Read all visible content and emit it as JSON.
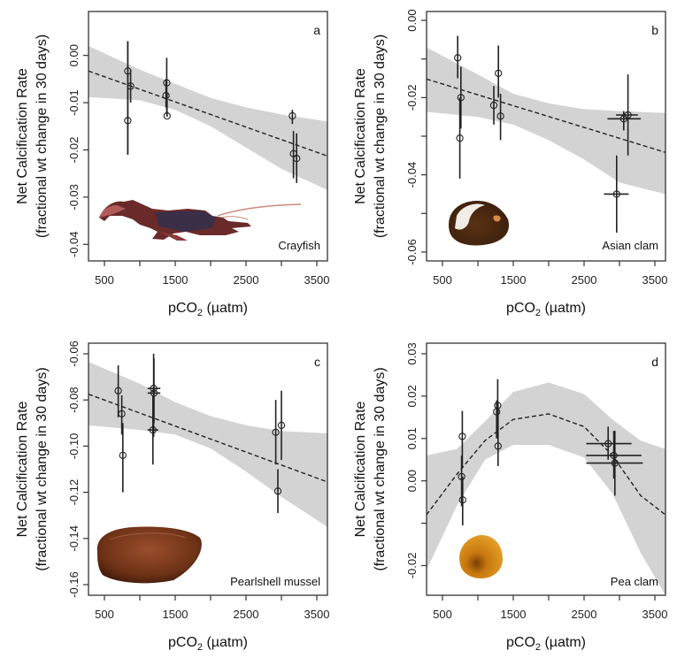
{
  "figure": {
    "x_axis_title": "pCO",
    "x_axis_sub": "2",
    "x_axis_unit": " (µatm)",
    "y_axis_title_line1": "Net Calcification Rate",
    "y_axis_title_line2": "(fractional wt change in 30 days)"
  },
  "colors": {
    "ci_band": "#d3d3d3",
    "line": "#222222",
    "points": "#222222",
    "frame": "#333333"
  },
  "chart_data": [
    {
      "type": "scatter",
      "panel": "a",
      "species": "Crayfish",
      "species_icon": "crayfish-photo",
      "xlabel": "pCO2 (µatm)",
      "ylabel": "Net Calcification Rate (fractional wt change in 30 days)",
      "xlim": [
        275,
        3650
      ],
      "ylim": [
        -0.0435,
        0.0093
      ],
      "x_ticks": [
        500,
        1000,
        1500,
        2000,
        2500,
        3000,
        3500
      ],
      "x_tick_labels": [
        "500",
        "",
        "1500",
        "",
        "2500",
        "",
        "3500"
      ],
      "y_ticks": [
        0.0,
        -0.01,
        -0.02,
        -0.03,
        -0.04
      ],
      "y_tick_labels": [
        "0.00",
        "-0.01",
        "-0.02",
        "-0.03",
        "-0.04"
      ],
      "fit": {
        "kind": "linear",
        "x": [
          275,
          3650
        ],
        "y": [
          -0.0033,
          -0.0213
        ]
      },
      "ci_band": {
        "x": [
          275,
          1000,
          1500,
          2000,
          2500,
          3000,
          3650
        ],
        "upper": [
          0.002,
          -0.003,
          -0.006,
          -0.009,
          -0.011,
          -0.0125,
          -0.014
        ],
        "lower": [
          -0.0088,
          -0.0095,
          -0.0115,
          -0.015,
          -0.0195,
          -0.024,
          -0.0285
        ]
      },
      "points": [
        {
          "x": 830,
          "y": -0.0033,
          "ylo": -0.021,
          "yhi": 0.003
        },
        {
          "x": 870,
          "y": -0.0065,
          "ylo": -0.01,
          "yhi": -0.003
        },
        {
          "x": 830,
          "y": -0.0138,
          "ylo": -0.021,
          "yhi": 0.003
        },
        {
          "x": 1380,
          "y": -0.0058,
          "ylo": -0.0125,
          "yhi": -0.0005
        },
        {
          "x": 1370,
          "y": -0.0085,
          "ylo": -0.011,
          "yhi": -0.005
        },
        {
          "x": 1385,
          "y": -0.0128,
          "ylo": -0.013,
          "yhi": -0.008
        },
        {
          "x": 3155,
          "y": -0.0128,
          "ylo": -0.0145,
          "yhi": -0.0115
        },
        {
          "x": 3170,
          "y": -0.0208,
          "ylo": -0.026,
          "yhi": -0.016
        },
        {
          "x": 3215,
          "y": -0.0218,
          "ylo": -0.027,
          "yhi": -0.0165
        }
      ]
    },
    {
      "type": "scatter",
      "panel": "b",
      "species": "Asian clam",
      "species_icon": "asian-clam-photo",
      "xlabel": "pCO2 (µatm)",
      "ylabel": "Net Calcification Rate (fractional wt change in 30 days)",
      "xlim": [
        275,
        3650
      ],
      "ylim": [
        -0.0623,
        0.0023
      ],
      "x_ticks": [
        500,
        1000,
        1500,
        2000,
        2500,
        3000,
        3500
      ],
      "x_tick_labels": [
        "500",
        "",
        "1500",
        "",
        "2500",
        "",
        "3500"
      ],
      "y_ticks": [
        0.0,
        -0.01,
        -0.02,
        -0.03,
        -0.04,
        -0.05,
        -0.06
      ],
      "y_tick_labels": [
        "0.00",
        "",
        "-0.02",
        "",
        "-0.04",
        "",
        "-0.06"
      ],
      "fit": {
        "kind": "linear",
        "x": [
          275,
          3650
        ],
        "y": [
          -0.0152,
          -0.0342
        ]
      },
      "ci_band": {
        "x": [
          275,
          1000,
          1500,
          2000,
          2500,
          3000,
          3650
        ],
        "upper": [
          -0.007,
          -0.014,
          -0.019,
          -0.0215,
          -0.023,
          -0.0235,
          -0.024
        ],
        "lower": [
          -0.0237,
          -0.025,
          -0.027,
          -0.031,
          -0.036,
          -0.042,
          -0.045
        ]
      },
      "points": [
        {
          "x": 715,
          "y": -0.0097,
          "ylo": -0.015,
          "yhi": -0.004
        },
        {
          "x": 760,
          "y": -0.02,
          "ylo": -0.028,
          "yhi": -0.012
        },
        {
          "x": 745,
          "y": -0.0305,
          "ylo": -0.041,
          "yhi": -0.02
        },
        {
          "x": 1290,
          "y": -0.0137,
          "ylo": -0.02,
          "yhi": -0.0065
        },
        {
          "x": 1225,
          "y": -0.022,
          "ylo": -0.027,
          "yhi": -0.017
        },
        {
          "x": 1320,
          "y": -0.0248,
          "ylo": -0.031,
          "yhi": -0.019
        },
        {
          "x": 3060,
          "y": -0.0255,
          "ylo": -0.0285,
          "yhi": -0.0235,
          "xlo": 2830,
          "xhi": 3300
        },
        {
          "x": 3120,
          "y": -0.0245,
          "ylo": -0.035,
          "yhi": -0.014,
          "xlo": 2950,
          "xhi": 3260
        },
        {
          "x": 2960,
          "y": -0.045,
          "ylo": -0.055,
          "yhi": -0.035,
          "xlo": 2780,
          "xhi": 3130
        }
      ]
    },
    {
      "type": "scatter",
      "panel": "c",
      "species": "Pearlshell mussel",
      "species_icon": "pearlshell-mussel-photo",
      "xlabel": "pCO2 (µatm)",
      "ylabel": "Net Calcification Rate (fractional wt change in 30 days)",
      "xlim": [
        275,
        3650
      ],
      "ylim": [
        -0.1646,
        -0.0554
      ],
      "x_ticks": [
        500,
        1000,
        1500,
        2000,
        2500,
        3000,
        3500
      ],
      "x_tick_labels": [
        "500",
        "",
        "1500",
        "",
        "2500",
        "",
        "3500"
      ],
      "y_ticks": [
        -0.06,
        -0.08,
        -0.1,
        -0.12,
        -0.14,
        -0.16
      ],
      "y_tick_labels": [
        "-0.06",
        "-0.08",
        "-0.10",
        "-0.12",
        "-0.14",
        "-0.16"
      ],
      "fit": {
        "kind": "linear",
        "x": [
          275,
          3650
        ],
        "y": [
          -0.0775,
          -0.1155
        ]
      },
      "ci_band": {
        "x": [
          275,
          1000,
          1500,
          2000,
          2500,
          3000,
          3650
        ],
        "upper": [
          -0.0635,
          -0.073,
          -0.081,
          -0.087,
          -0.091,
          -0.0935,
          -0.0945
        ],
        "lower": [
          -0.091,
          -0.093,
          -0.095,
          -0.101,
          -0.111,
          -0.122,
          -0.135
        ]
      },
      "points": [
        {
          "x": 695,
          "y": -0.076,
          "ylo": -0.0875,
          "yhi": -0.065
        },
        {
          "x": 745,
          "y": -0.086,
          "ylo": -0.095,
          "yhi": -0.078
        },
        {
          "x": 760,
          "y": -0.104,
          "ylo": -0.12,
          "yhi": -0.09
        },
        {
          "x": 1195,
          "y": -0.075,
          "ylo": -0.096,
          "yhi": -0.06,
          "xlo": 1110,
          "xhi": 1290
        },
        {
          "x": 1200,
          "y": -0.077,
          "ylo": -0.09,
          "yhi": -0.062,
          "xlo": 1110,
          "xhi": 1290
        },
        {
          "x": 1185,
          "y": -0.093,
          "ylo": -0.108,
          "yhi": -0.078,
          "xlo": 1110,
          "xhi": 1260
        }
      ],
      "points_right": [
        {
          "x": 2920,
          "y": -0.094,
          "ylo": -0.108,
          "yhi": -0.08
        },
        {
          "x": 3000,
          "y": -0.091,
          "ylo": -0.106,
          "yhi": -0.076
        },
        {
          "x": 2950,
          "y": -0.1195,
          "ylo": -0.129,
          "yhi": -0.11
        }
      ]
    },
    {
      "type": "scatter",
      "panel": "d",
      "species": "Pea clam",
      "species_icon": "pea-clam-photo",
      "xlabel": "pCO2 (µatm)",
      "ylabel": "Net Calcification Rate (fractional wt change in 30 days)",
      "xlim": [
        275,
        3650
      ],
      "ylim": [
        -0.027,
        0.0325
      ],
      "x_ticks": [
        500,
        1000,
        1500,
        2000,
        2500,
        3000,
        3500
      ],
      "x_tick_labels": [
        "500",
        "",
        "1500",
        "",
        "2500",
        "",
        "3500"
      ],
      "y_ticks": [
        0.03,
        0.02,
        0.01,
        0.0,
        -0.01,
        -0.02
      ],
      "y_tick_labels": [
        "0.03",
        "0.02",
        "0.01",
        "0.00",
        "",
        "-0.02"
      ],
      "fit": {
        "kind": "quadratic",
        "x": [
          275,
          700,
          1100,
          1500,
          2000,
          2500,
          2900,
          3300,
          3650
        ],
        "y": [
          -0.008,
          0.0015,
          0.0095,
          0.0145,
          0.0158,
          0.0128,
          0.006,
          -0.0035,
          -0.008
        ]
      },
      "ci_band": {
        "x": [
          275,
          700,
          1100,
          1500,
          2000,
          2500,
          2900,
          3300,
          3650
        ],
        "upper": [
          0.006,
          0.0075,
          0.014,
          0.021,
          0.0232,
          0.0205,
          0.0145,
          0.0095,
          0.0075
        ],
        "lower": [
          -0.021,
          -0.006,
          0.005,
          0.0085,
          0.0085,
          0.0055,
          -0.003,
          -0.017,
          -0.027
        ]
      },
      "points": [
        {
          "x": 780,
          "y": 0.0105,
          "ylo": 0.003,
          "yhi": 0.0165
        },
        {
          "x": 770,
          "y": 0.001,
          "ylo": -0.006,
          "yhi": 0.006
        },
        {
          "x": 785,
          "y": -0.0045,
          "ylo": -0.0105,
          "yhi": 0.001
        },
        {
          "x": 1280,
          "y": 0.0178,
          "ylo": 0.011,
          "yhi": 0.024
        },
        {
          "x": 1265,
          "y": 0.0163,
          "ylo": 0.01,
          "yhi": 0.019
        },
        {
          "x": 1285,
          "y": 0.0082,
          "ylo": 0.0035,
          "yhi": 0.0185
        },
        {
          "x": 2840,
          "y": 0.0088,
          "ylo": 0.005,
          "yhi": 0.0128,
          "xlo": 2530,
          "xhi": 3170
        },
        {
          "x": 2920,
          "y": 0.006,
          "ylo": 0.0005,
          "yhi": 0.0118,
          "xlo": 2530,
          "xhi": 3310
        },
        {
          "x": 2935,
          "y": 0.0042,
          "ylo": -0.0035,
          "yhi": 0.0118,
          "xlo": 2530,
          "xhi": 3330
        }
      ]
    }
  ]
}
